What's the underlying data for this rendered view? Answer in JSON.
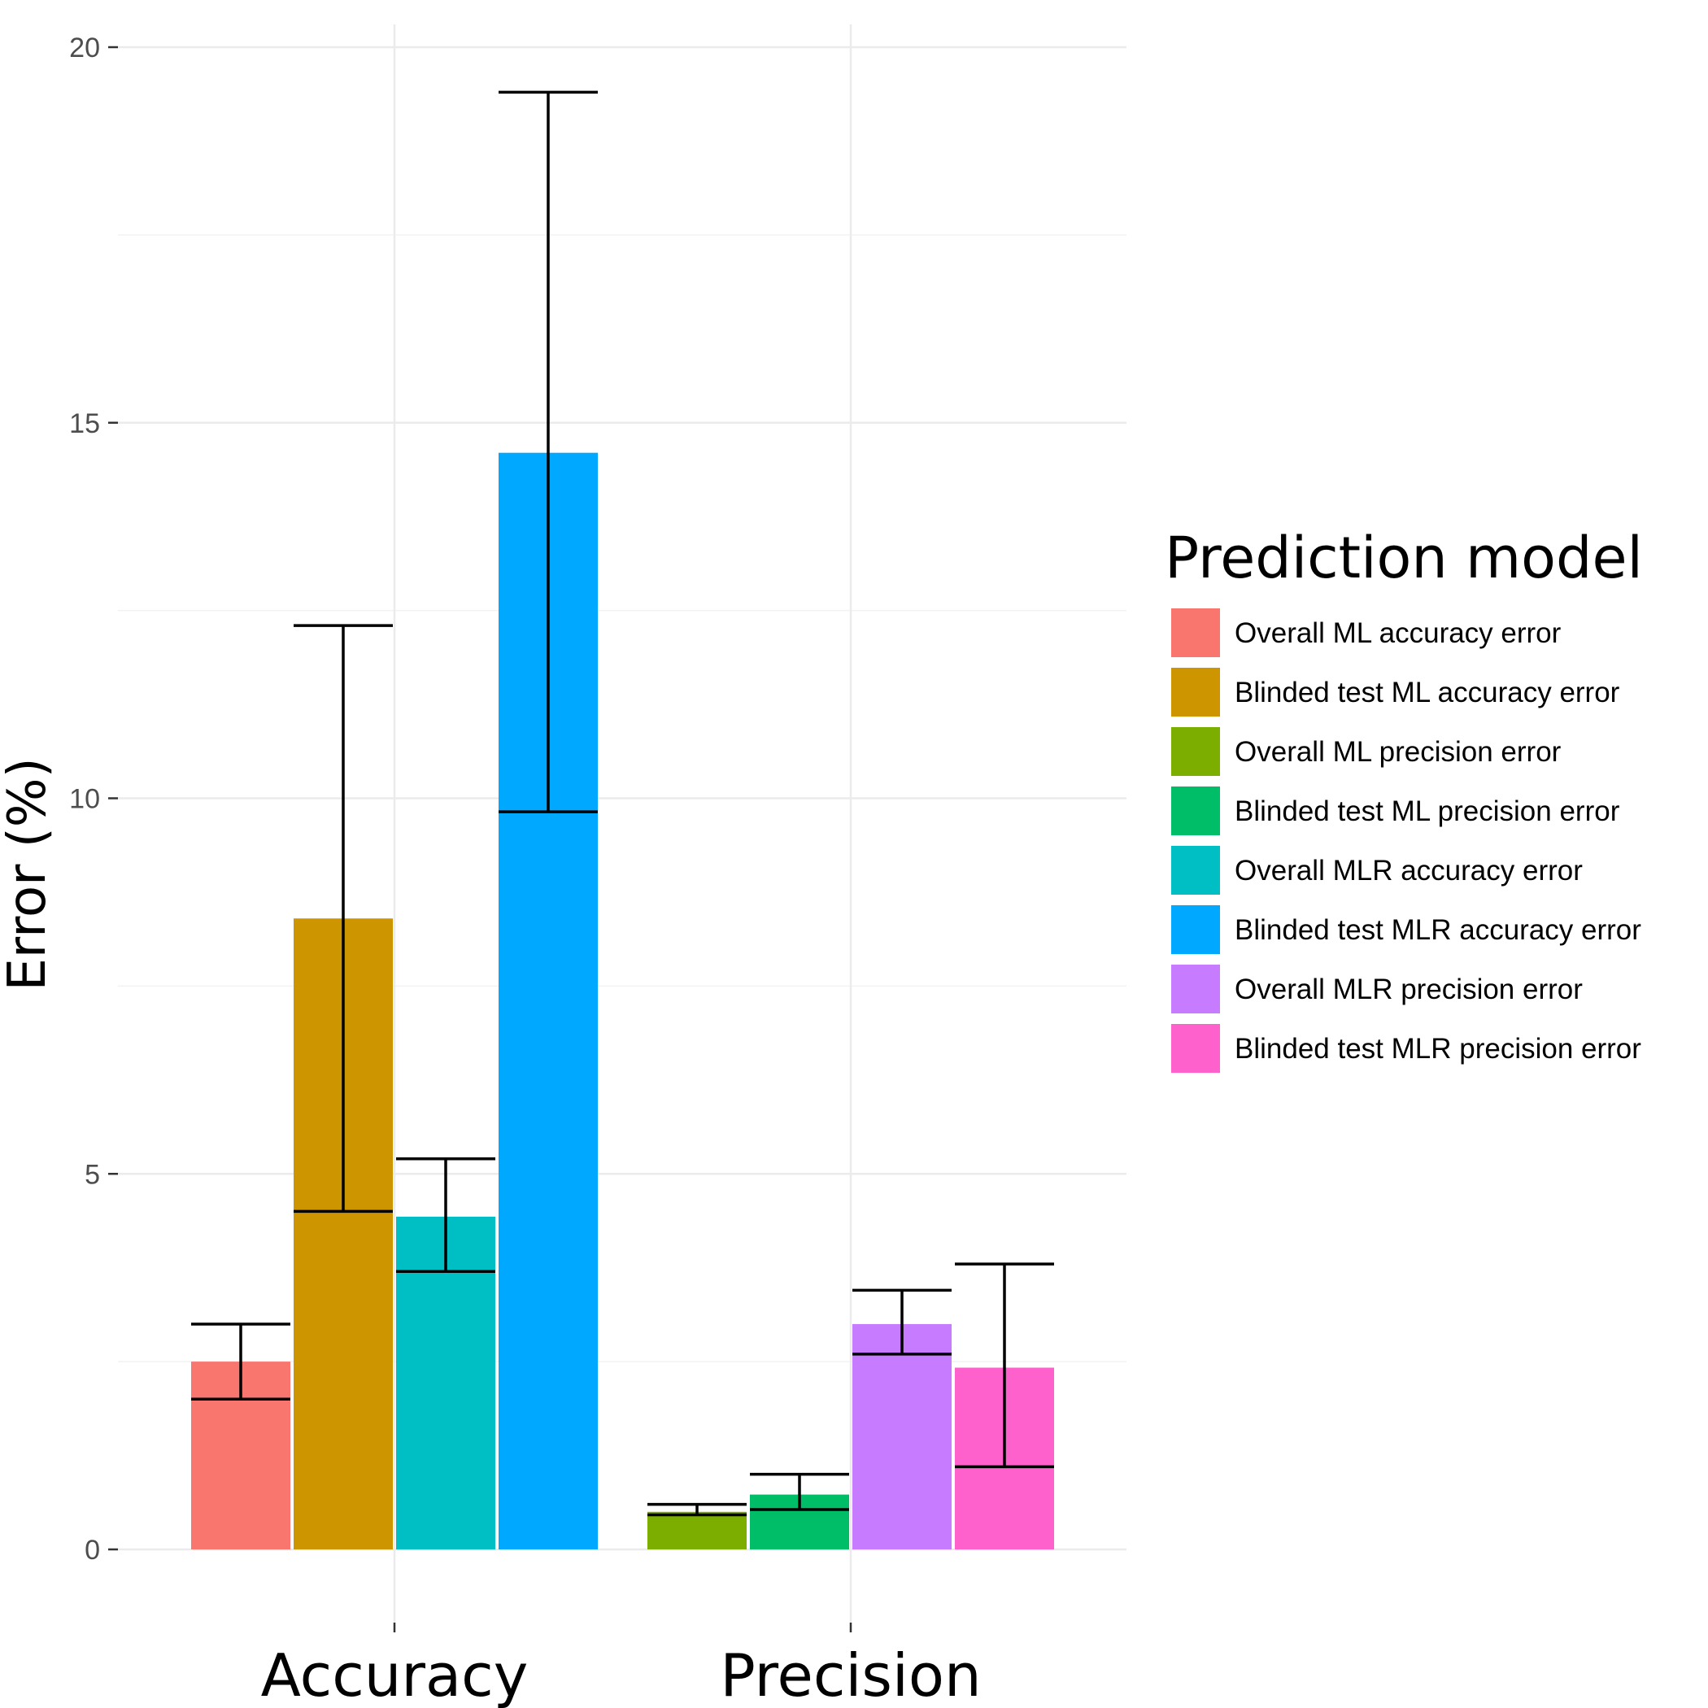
{
  "chart_data": {
    "type": "bar",
    "categories": [
      "Accuracy",
      "Precision"
    ],
    "ylabel": "Error (%)",
    "xlabel": "",
    "ylim": [
      -1,
      20
    ],
    "yticks": [
      0,
      5,
      10,
      15,
      20
    ],
    "grid": true,
    "legend": {
      "title": "Prediction model",
      "placement": "right",
      "entries": [
        {
          "name": "Overall ML accuracy error",
          "color": "#F8766D"
        },
        {
          "name": "Blinded test ML accuracy error",
          "color": "#CD9600"
        },
        {
          "name": "Overall ML precision error",
          "color": "#7CAE00"
        },
        {
          "name": "Blinded test ML precision error",
          "color": "#00BE67"
        },
        {
          "name": "Overall MLR accuracy error",
          "color": "#00BFC4"
        },
        {
          "name": "Blinded test MLR accuracy error",
          "color": "#00A9FF"
        },
        {
          "name": "Overall MLR precision error",
          "color": "#C77CFF"
        },
        {
          "name": "Blinded test MLR precision error",
          "color": "#FF61CC"
        }
      ]
    },
    "bars": [
      {
        "category": "Accuracy",
        "series": "Overall ML accuracy error",
        "value": 2.5,
        "err_low": 2.0,
        "err_high": 3.0
      },
      {
        "category": "Accuracy",
        "series": "Blinded test ML accuracy error",
        "value": 8.4,
        "err_low": 4.5,
        "err_high": 12.3
      },
      {
        "category": "Accuracy",
        "series": "Overall MLR accuracy error",
        "value": 4.43,
        "err_low": 3.7,
        "err_high": 5.2
      },
      {
        "category": "Accuracy",
        "series": "Blinded test MLR accuracy error",
        "value": 14.6,
        "err_low": 9.82,
        "err_high": 19.4
      },
      {
        "category": "Precision",
        "series": "Overall ML precision error",
        "value": 0.5,
        "err_low": 0.46,
        "err_high": 0.6
      },
      {
        "category": "Precision",
        "series": "Blinded test ML precision error",
        "value": 0.73,
        "err_low": 0.53,
        "err_high": 1.0
      },
      {
        "category": "Precision",
        "series": "Overall MLR precision error",
        "value": 3.0,
        "err_low": 2.6,
        "err_high": 3.45
      },
      {
        "category": "Precision",
        "series": "Blinded test MLR precision error",
        "value": 2.42,
        "err_low": 1.1,
        "err_high": 3.8
      }
    ]
  }
}
